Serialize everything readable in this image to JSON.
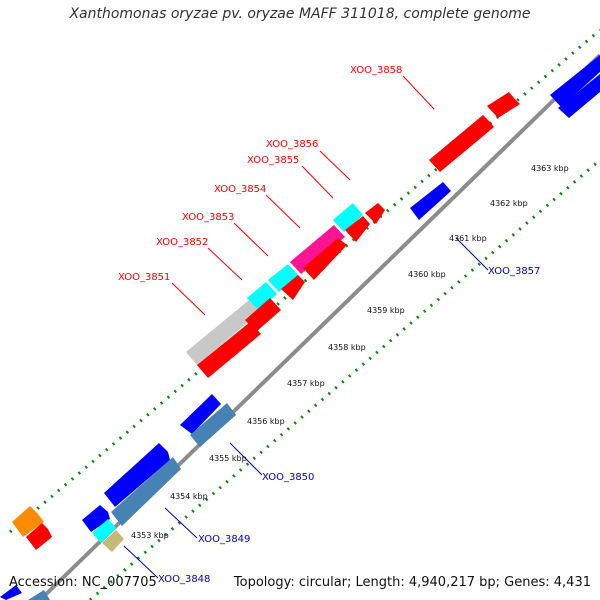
{
  "title": "Xanthomonas oryzae pv. oryzae MAFF 311018, complete genome",
  "footer": {
    "accession": "Accession: NC_007705",
    "summary": "Topology: circular; Length: 4,940,217 bp; Genes: 4,431"
  },
  "colors": {
    "backbone": "#8c8c8c",
    "tick": "#0a8a0a",
    "red_label": "#ff0000",
    "blue_label": "#0000cc"
  },
  "ticks": [
    {
      "label": "4353 kbp"
    },
    {
      "label": "4354 kbp"
    },
    {
      "label": "4355 kbp"
    },
    {
      "label": "4356 kbp"
    },
    {
      "label": "4357 kbp"
    },
    {
      "label": "4358 kbp"
    },
    {
      "label": "4359 kbp"
    },
    {
      "label": "4360 kbp"
    },
    {
      "label": "4361 kbp"
    },
    {
      "label": "4362 kbp"
    },
    {
      "label": "4363 kbp"
    }
  ],
  "gene_labels": [
    {
      "text": "XOO_3851",
      "color": "red"
    },
    {
      "text": "XOO_3852",
      "color": "red"
    },
    {
      "text": "XOO_3853",
      "color": "red"
    },
    {
      "text": "XOO_3854",
      "color": "red"
    },
    {
      "text": "XOO_3855",
      "color": "red"
    },
    {
      "text": "XOO_3856",
      "color": "red"
    },
    {
      "text": "XOO_3858",
      "color": "red"
    },
    {
      "text": "XOO_3857",
      "color": "blue"
    },
    {
      "text": "XOO_3850",
      "color": "blue"
    },
    {
      "text": "XOO_3849",
      "color": "blue"
    },
    {
      "text": "XOO_3848",
      "color": "blue"
    }
  ]
}
